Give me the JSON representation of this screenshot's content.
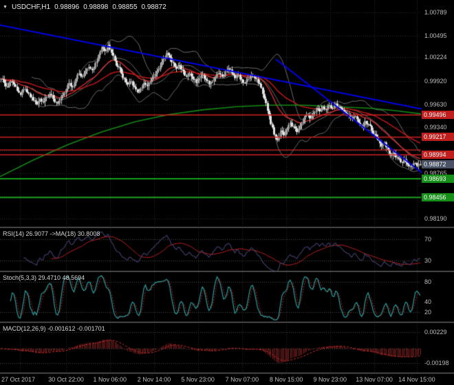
{
  "header": {
    "symbol": "USDCHF,H1",
    "open": "0.98896",
    "high": "0.98898",
    "low": "0.98855",
    "close": "0.98872"
  },
  "colors": {
    "background": "#000000",
    "grid": "#2d2d2d",
    "candle": "#c8c8c8",
    "candle_up": "#9a9a9a",
    "candle_down": "#e4e4e4",
    "bollinger": "#6f6f6f",
    "ma_fast_red": "#e03030",
    "ma_slow_red": "#c01818",
    "ma_green": "#128a12",
    "trendline": "#0000ee",
    "resistance": "#d42222",
    "support": "#17a01b",
    "rsi_line": "#3d3d66",
    "rsi_ma": "#c02020",
    "stoch_k": "#2aa1a1",
    "stoch_d": "#c02020",
    "macd_hist": "#8a2121",
    "macd_signal": "#d23030",
    "axis_text": "#bdbdbd"
  },
  "chart_data": {
    "type": "candlestick",
    "symbol": "USDCHF",
    "timeframe": "H1",
    "price_axis": {
      "max": 1.00789,
      "min": 0.9819,
      "labels": [
        "1.00789",
        "1.00495",
        "1.00224",
        "0.99920",
        "0.99630",
        "0.99340",
        "0.98765",
        "0.98190"
      ],
      "gridline_prices": [
        1.00789,
        1.00495,
        1.00224,
        0.9992,
        0.9963,
        0.9934,
        0.99052,
        0.98765,
        0.98478,
        0.9819
      ]
    },
    "levels": {
      "resistance": [
        0.99496,
        0.99217,
        0.99055,
        0.98994
      ],
      "support": [
        0.98693,
        0.98456
      ],
      "current_price": 0.98872,
      "badges": [
        {
          "text": "0.99496",
          "kind": "res"
        },
        {
          "text": "0.99217",
          "kind": "res"
        },
        {
          "text": "0.98994",
          "kind": "res"
        },
        {
          "text": "0.98872",
          "kind": "cur"
        },
        {
          "text": "0.98693",
          "kind": "sup"
        },
        {
          "text": "0.98456",
          "kind": "sup"
        }
      ]
    },
    "trendlines": [
      {
        "x1": -0.01,
        "p1": 1.0064,
        "x2": 1.06,
        "p2": 0.9951
      },
      {
        "x1": 0.655,
        "p1": 1.002,
        "x2": 1.06,
        "p2": 0.9853
      }
    ],
    "ma_green": [
      [
        0,
        0.9872
      ],
      [
        0.08,
        0.9893
      ],
      [
        0.16,
        0.9912
      ],
      [
        0.24,
        0.9928
      ],
      [
        0.32,
        0.9941
      ],
      [
        0.4,
        0.995
      ],
      [
        0.48,
        0.9956
      ],
      [
        0.56,
        0.996
      ],
      [
        0.64,
        0.9962
      ],
      [
        0.72,
        0.9962
      ],
      [
        0.8,
        0.996
      ],
      [
        0.88,
        0.9958
      ],
      [
        0.94,
        0.9955
      ],
      [
        1.0,
        0.9951
      ]
    ],
    "closes": [
      0.9995,
      0.999,
      0.9985,
      0.9992,
      0.9988,
      0.998,
      0.9975,
      0.9982,
      0.9978,
      0.9972,
      0.9968,
      0.9963,
      0.997,
      0.9966,
      0.9972,
      0.9976,
      0.997,
      0.9965,
      0.9968,
      0.9975,
      0.9982,
      0.999,
      0.9985,
      0.9995,
      1.0002,
      0.9998,
      1.0005,
      1.001,
      1.0006,
      1.0015,
      1.0025,
      1.0035,
      1.003,
      1.0038,
      1.0028,
      1.0018,
      1.001,
      1.0002,
      0.9995,
      0.9988,
      0.9992,
      0.9985,
      0.9978,
      0.9983,
      0.999,
      0.9986,
      0.9992,
      0.9998,
      1.0005,
      1.0012,
      1.002,
      1.0028,
      1.0022,
      1.0015,
      1.0008,
      1.0012,
      1.0005,
      0.9998,
      1.0002,
      0.9995,
      0.999,
      0.9996,
      1.0,
      0.9994,
      0.9988,
      0.9992,
      0.9998,
      1.0002,
      0.9998,
      1.0004,
      1.0008,
      1.0002,
      0.9996,
      1.0,
      0.9994,
      0.999,
      0.9995,
      1.0,
      0.9996,
      0.999,
      0.9984,
      0.997,
      0.9955,
      0.9938,
      0.9925,
      0.9918,
      0.993,
      0.9924,
      0.9932,
      0.994,
      0.9935,
      0.9928,
      0.9936,
      0.9944,
      0.995,
      0.9945,
      0.9952,
      0.9958,
      0.9954,
      0.996,
      0.9956,
      0.9962,
      0.9958,
      0.9964,
      0.996,
      0.9956,
      0.9952,
      0.995,
      0.9944,
      0.9948,
      0.994,
      0.9935,
      0.9942,
      0.9938,
      0.993,
      0.9925,
      0.9918,
      0.991,
      0.9915,
      0.9905,
      0.9898,
      0.9902,
      0.9895,
      0.989,
      0.9894,
      0.9887,
      0.9884,
      0.9889,
      0.9885,
      0.98872
    ],
    "time_axis": {
      "labels": [
        "27 Oct 2017",
        "30 Oct 22:00",
        "1 Nov 06:00",
        "2 Nov 14:00",
        "5 Nov 23:00",
        "7 Nov 07:00",
        "8 Nov 15:00",
        "9 Nov 23:00",
        "13 Nov 07:00",
        "14 Nov 15:00"
      ],
      "fracs": [
        0.047,
        0.157,
        0.261,
        0.366,
        0.47,
        0.575,
        0.68,
        0.784,
        0.889,
        0.99
      ]
    },
    "indicators": {
      "rsi": {
        "label": "RSI(14) 26.9077 ->MA(18) 30.8008",
        "period": 14,
        "ma_period": 18,
        "value": 26.9077,
        "ma_value": 30.8008,
        "levels": [
          70,
          30
        ],
        "axis_labels": [
          "70",
          "30"
        ]
      },
      "stoch": {
        "label": "Stoch(5,3,3) 29.4710 48.5694",
        "k_period": 5,
        "slowing": 3,
        "d_period": 3,
        "k_value": 29.471,
        "d_value": 48.5694,
        "levels": [
          80,
          20
        ],
        "axis_labels": [
          "80",
          "40",
          "20"
        ]
      },
      "macd": {
        "label": "MACD(12,26,9) -0.001612 -0.001701",
        "fast": 12,
        "slow": 26,
        "signal_period": 9,
        "value": -0.001612,
        "signal_value": -0.001701,
        "axis_labels": [
          "0.00229",
          "-0.00198"
        ]
      }
    }
  }
}
